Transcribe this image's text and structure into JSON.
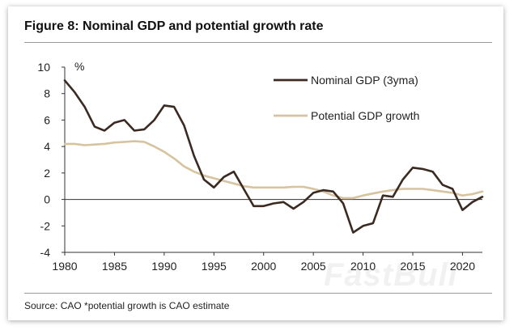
{
  "title": "Figure 8: Nominal GDP and potential growth rate",
  "source": "Source: CAO *potential growth is CAO estimate",
  "watermark": "FastBull",
  "chart_data": {
    "type": "line",
    "title": "Figure 8: Nominal GDP and potential growth rate",
    "xlabel": "",
    "ylabel": "%",
    "xlim": [
      1980,
      2022
    ],
    "ylim": [
      -4,
      10
    ],
    "xticks": [
      1980,
      1985,
      1990,
      1995,
      2000,
      2005,
      2010,
      2015,
      2020
    ],
    "yticks": [
      -4,
      -2,
      0,
      2,
      4,
      6,
      8,
      10
    ],
    "negative_tick_color": "#cc0000",
    "legend": "top-right",
    "series": [
      {
        "name": "Nominal GDP (3yma)",
        "color": "#3b2a22",
        "x": [
          1980,
          1981,
          1982,
          1983,
          1984,
          1985,
          1986,
          1987,
          1988,
          1989,
          1990,
          1991,
          1992,
          1993,
          1994,
          1995,
          1996,
          1997,
          1998,
          1999,
          2000,
          2001,
          2002,
          2003,
          2004,
          2005,
          2006,
          2007,
          2008,
          2009,
          2010,
          2011,
          2012,
          2013,
          2014,
          2015,
          2016,
          2017,
          2018,
          2019,
          2020,
          2021,
          2022
        ],
        "values": [
          9.0,
          8.1,
          7.0,
          5.5,
          5.2,
          5.8,
          6.0,
          5.2,
          5.3,
          6.0,
          7.1,
          7.0,
          5.6,
          3.3,
          1.5,
          0.9,
          1.7,
          2.1,
          0.8,
          -0.5,
          -0.5,
          -0.3,
          -0.2,
          -0.7,
          -0.2,
          0.5,
          0.7,
          0.6,
          -0.3,
          -2.5,
          -2.0,
          -1.8,
          0.3,
          0.2,
          1.5,
          2.4,
          2.3,
          2.1,
          1.1,
          0.8,
          -0.8,
          -0.2,
          0.2
        ]
      },
      {
        "name": "Potential GDP growth",
        "color": "#d6c3a0",
        "x": [
          1980,
          1981,
          1982,
          1983,
          1984,
          1985,
          1986,
          1987,
          1988,
          1989,
          1990,
          1991,
          1992,
          1993,
          1994,
          1995,
          1996,
          1997,
          1998,
          1999,
          2000,
          2001,
          2002,
          2003,
          2004,
          2005,
          2006,
          2007,
          2008,
          2009,
          2010,
          2011,
          2012,
          2013,
          2014,
          2015,
          2016,
          2017,
          2018,
          2019,
          2020,
          2021,
          2022
        ],
        "values": [
          4.2,
          4.2,
          4.1,
          4.15,
          4.2,
          4.3,
          4.35,
          4.4,
          4.35,
          4.0,
          3.6,
          3.1,
          2.5,
          2.1,
          1.8,
          1.6,
          1.4,
          1.2,
          1.0,
          0.9,
          0.9,
          0.9,
          0.9,
          0.95,
          0.95,
          0.8,
          0.6,
          0.3,
          0.1,
          0.1,
          0.3,
          0.45,
          0.6,
          0.7,
          0.8,
          0.8,
          0.8,
          0.7,
          0.6,
          0.5,
          0.3,
          0.4,
          0.6
        ]
      }
    ]
  }
}
